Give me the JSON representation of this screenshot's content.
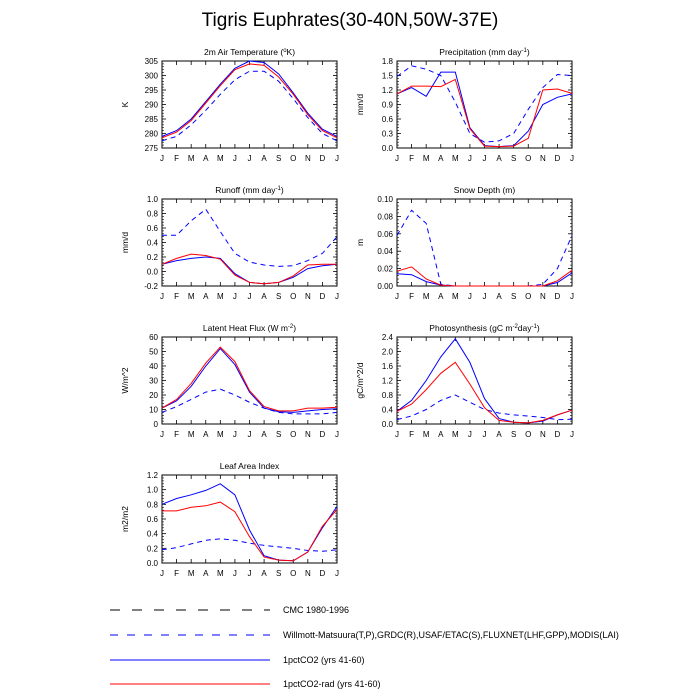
{
  "title": "Tigris Euphrates(30-40N,50W-37E)",
  "months": [
    "J",
    "F",
    "M",
    "A",
    "M",
    "J",
    "J",
    "A",
    "S",
    "O",
    "N",
    "D",
    "J"
  ],
  "colors": {
    "obs": "#0000ff",
    "co2": "#0000ff",
    "rad": "#ff0000",
    "axis": "#000000"
  },
  "legend": [
    {
      "label": "CMC 1980-1996",
      "style": "long-dash",
      "color": "#000000"
    },
    {
      "label": "Willmott-Matsuura(T,P),GRDC(R),USAF/ETAC(S),FLUXNET(LHF,GPP),MODIS(LAI)",
      "style": "dash",
      "color": "#0000ff"
    },
    {
      "label": "1pctCO2 (yrs 41-60)",
      "style": "solid",
      "color": "#0000ff"
    },
    {
      "label": "1pctCO2-rad (yrs 41-60)",
      "style": "solid",
      "color": "#ff0000"
    }
  ],
  "chart_data": [
    {
      "id": "temp",
      "type": "line",
      "title": "2m Air Temperature (",
      "title_sup": "o",
      "title_after": "K)",
      "ylabel": "K",
      "ylim": [
        275,
        305
      ],
      "yticks": [
        "275",
        "280",
        "285",
        "290",
        "295",
        "300",
        "305"
      ],
      "series": [
        {
          "role": "obs",
          "values": [
            277.5,
            279,
            283,
            288,
            293.5,
            298.5,
            301.5,
            301.5,
            298,
            292,
            285.5,
            280,
            277.5
          ]
        },
        {
          "role": "co2",
          "values": [
            279,
            281,
            285,
            291,
            297,
            302.5,
            305,
            304.5,
            300.5,
            294,
            287,
            281.5,
            279
          ]
        },
        {
          "role": "rad",
          "values": [
            278.5,
            280.5,
            284.5,
            290.5,
            296.5,
            302,
            304,
            303.5,
            299.5,
            293.5,
            286.5,
            281,
            278.5
          ]
        }
      ]
    },
    {
      "id": "precip",
      "type": "line",
      "title": "Precipitation (mm day",
      "title_sup": "-1",
      "title_after": ")",
      "ylabel": "mm/d",
      "ylim": [
        0,
        1.8
      ],
      "yticks": [
        "0.0",
        "0.3",
        "0.6",
        "0.9",
        "1.2",
        "1.5",
        "1.8"
      ],
      "series": [
        {
          "role": "obs",
          "values": [
            1.48,
            1.7,
            1.63,
            1.5,
            0.95,
            0.3,
            0.12,
            0.15,
            0.3,
            0.8,
            1.25,
            1.52,
            1.5
          ]
        },
        {
          "role": "co2",
          "values": [
            1.12,
            1.25,
            1.07,
            1.57,
            1.57,
            0.42,
            0.05,
            0.03,
            0.05,
            0.35,
            0.9,
            1.05,
            1.12
          ]
        },
        {
          "role": "rad",
          "values": [
            1.12,
            1.28,
            1.28,
            1.27,
            1.42,
            0.4,
            0.04,
            0.03,
            0.04,
            0.2,
            1.2,
            1.22,
            1.13
          ]
        }
      ]
    },
    {
      "id": "runoff",
      "type": "line",
      "title": "Runoff (mm day",
      "title_sup": "-1",
      "title_after": ")",
      "ylabel": "mm/d",
      "ylim": [
        -0.2,
        1.0
      ],
      "yticks": [
        "-0.2",
        "0.0",
        "0.2",
        "0.4",
        "0.6",
        "0.8",
        "1.0"
      ],
      "series": [
        {
          "role": "obs",
          "values": [
            0.5,
            0.5,
            0.7,
            0.86,
            0.55,
            0.25,
            0.13,
            0.09,
            0.07,
            0.08,
            0.15,
            0.25,
            0.48
          ]
        },
        {
          "role": "co2",
          "values": [
            0.1,
            0.15,
            0.18,
            0.2,
            0.18,
            -0.03,
            -0.15,
            -0.17,
            -0.15,
            -0.08,
            0.04,
            0.08,
            0.1
          ]
        },
        {
          "role": "rad",
          "values": [
            0.1,
            0.18,
            0.24,
            0.22,
            0.17,
            -0.05,
            -0.15,
            -0.17,
            -0.15,
            -0.06,
            0.09,
            0.1,
            0.1
          ]
        }
      ]
    },
    {
      "id": "snow",
      "type": "line",
      "title": "Snow Depth (m)",
      "title_sup": "",
      "title_after": "",
      "ylabel": "m",
      "ylim": [
        0,
        0.1
      ],
      "yticks": [
        "0.00",
        "0.02",
        "0.04",
        "0.06",
        "0.08",
        "0.10"
      ],
      "series": [
        {
          "role": "obs",
          "values": [
            0.058,
            0.087,
            0.072,
            0.002,
            0,
            0,
            0,
            0,
            0,
            0,
            0.002,
            0.02,
            0.058
          ]
        },
        {
          "role": "co2",
          "values": [
            0.014,
            0.013,
            0.005,
            0.001,
            0,
            0,
            0,
            0,
            0,
            0,
            0,
            0.004,
            0.015
          ]
        },
        {
          "role": "rad",
          "values": [
            0.017,
            0.022,
            0.008,
            0.001,
            0,
            0,
            0,
            0,
            0,
            0,
            0,
            0.006,
            0.018
          ]
        }
      ]
    },
    {
      "id": "lhf",
      "type": "line",
      "title": "Latent Heat Flux (W m",
      "title_sup": "-2",
      "title_after": ")",
      "ylabel": "W/m^2",
      "ylim": [
        0,
        60
      ],
      "yticks": [
        "0",
        "10",
        "20",
        "30",
        "40",
        "50",
        "60"
      ],
      "series": [
        {
          "role": "obs",
          "values": [
            8,
            12,
            17,
            22,
            24,
            20,
            15,
            11,
            8,
            7,
            7,
            7,
            8
          ]
        },
        {
          "role": "co2",
          "values": [
            11,
            16,
            26,
            40,
            52,
            41,
            22,
            11,
            8.5,
            8,
            9,
            10,
            10.5
          ]
        },
        {
          "role": "rad",
          "values": [
            11,
            17,
            28,
            42,
            53,
            43,
            23,
            12,
            9,
            9,
            11,
            11,
            11.5
          ]
        }
      ]
    },
    {
      "id": "gpp",
      "type": "line",
      "title": "Photosynthesis (gC m",
      "title_sup": "-2",
      "title_after": "day",
      "title_sup2": "-1",
      "title_end": ")",
      "ylabel": "gC/m^2/d",
      "ylim": [
        0,
        2.4
      ],
      "yticks": [
        "0.0",
        "0.4",
        "0.8",
        "1.2",
        "1.6",
        "2.0",
        "2.4"
      ],
      "series": [
        {
          "role": "obs",
          "values": [
            0.12,
            0.22,
            0.4,
            0.65,
            0.8,
            0.6,
            0.4,
            0.3,
            0.25,
            0.22,
            0.18,
            0.12,
            0.13
          ]
        },
        {
          "role": "co2",
          "values": [
            0.35,
            0.65,
            1.2,
            1.85,
            2.35,
            1.7,
            0.7,
            0.15,
            0.05,
            0.03,
            0.08,
            0.25,
            0.38
          ]
        },
        {
          "role": "rad",
          "values": [
            0.35,
            0.55,
            0.95,
            1.4,
            1.7,
            1.1,
            0.45,
            0.1,
            0.05,
            0.03,
            0.1,
            0.25,
            0.38
          ]
        }
      ]
    },
    {
      "id": "lai",
      "type": "line",
      "title": "Leaf Area Index",
      "title_sup": "",
      "title_after": "",
      "ylabel": "m2/m2",
      "ylim": [
        0,
        1.2
      ],
      "yticks": [
        "0.0",
        "0.2",
        "0.4",
        "0.6",
        "0.8",
        "1.0",
        "1.2"
      ],
      "series": [
        {
          "role": "obs",
          "values": [
            0.18,
            0.21,
            0.26,
            0.31,
            0.33,
            0.31,
            0.27,
            0.24,
            0.22,
            0.2,
            0.17,
            0.16,
            0.18
          ]
        },
        {
          "role": "co2",
          "values": [
            0.8,
            0.88,
            0.93,
            0.99,
            1.08,
            0.93,
            0.45,
            0.1,
            0.04,
            0.03,
            0.15,
            0.48,
            0.77
          ]
        },
        {
          "role": "rad",
          "values": [
            0.71,
            0.71,
            0.76,
            0.78,
            0.83,
            0.7,
            0.36,
            0.08,
            0.04,
            0.03,
            0.15,
            0.5,
            0.73
          ]
        }
      ]
    }
  ]
}
